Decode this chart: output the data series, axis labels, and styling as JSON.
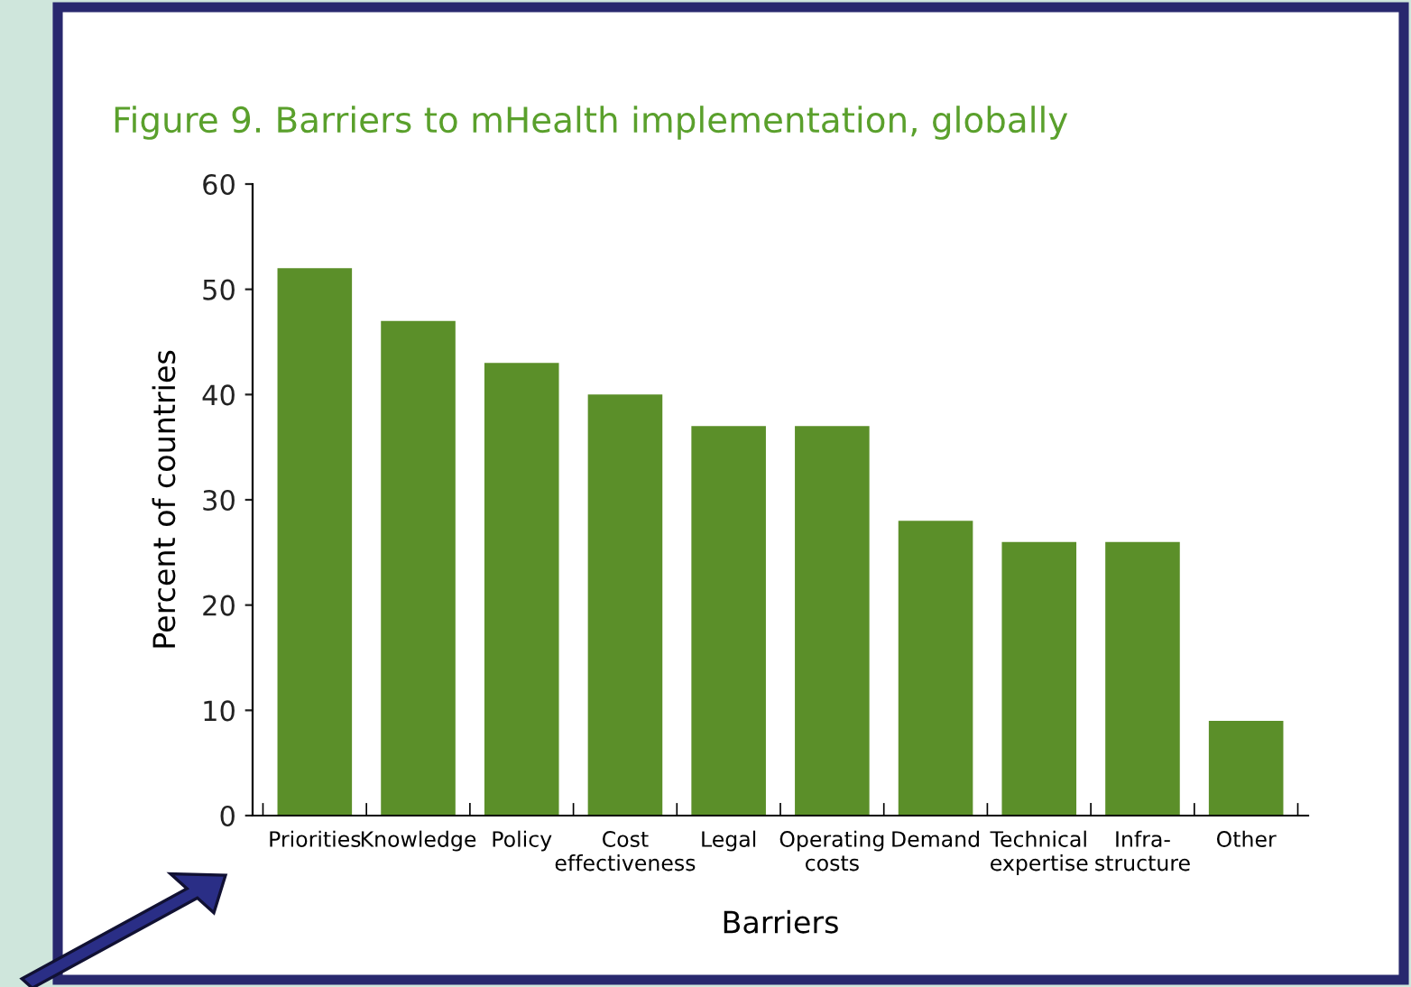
{
  "chart_data": {
    "type": "bar",
    "title": "Figure 9. Barriers to mHealth implementation, globally",
    "xlabel": "Barriers",
    "ylabel": "Percent of countries",
    "categories": [
      "Priorities",
      "Knowledge",
      "Policy",
      "Cost\neffectiveness",
      "Legal",
      "Operating\ncosts",
      "Demand",
      "Technical\nexpertise",
      "Infra-\nstructure",
      "Other"
    ],
    "values": [
      52,
      47,
      43,
      40,
      37,
      37,
      28,
      26,
      26,
      9
    ],
    "color": "#5b8f29",
    "ylim": [
      0,
      60
    ],
    "yticks": [
      0,
      10,
      20,
      30,
      40,
      50,
      60
    ],
    "grid": false
  }
}
